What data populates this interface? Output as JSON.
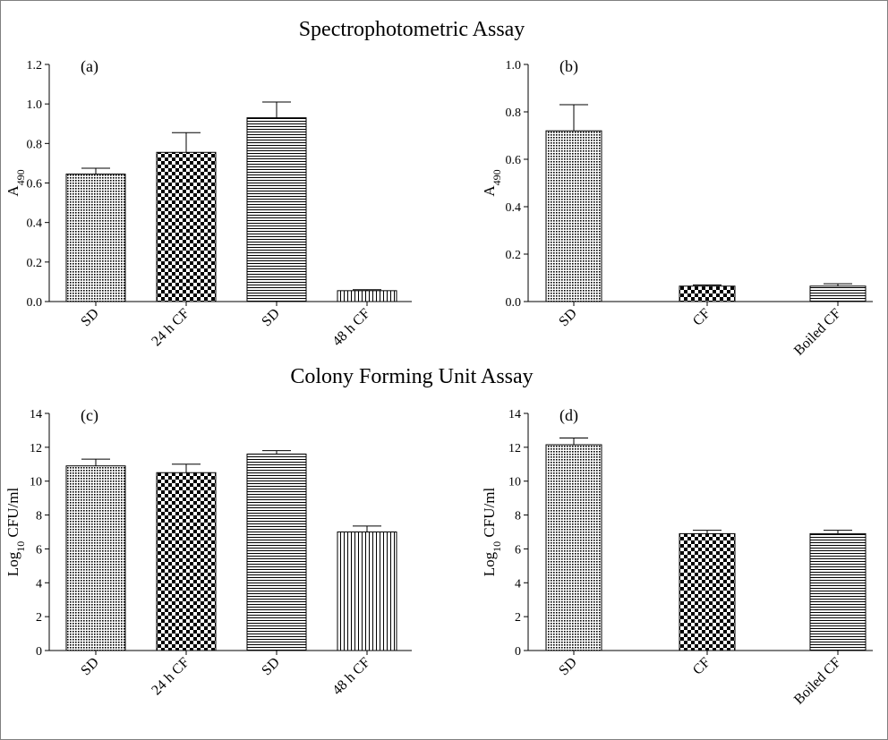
{
  "figure": {
    "section_titles": [
      "Spectrophotometric Assay",
      "Colony Forming Unit Assay"
    ],
    "colors": {
      "ink": "#000000",
      "background": "#ffffff",
      "frame": "#808080"
    }
  },
  "chart_data": [
    {
      "type": "bar",
      "panel": "(a)",
      "title": "Spectrophotometric Assay",
      "ylabel": "A",
      "ylabel_sub": "490",
      "categories": [
        "SD",
        "24 h CF",
        "SD",
        "48 h CF"
      ],
      "patterns": [
        "dots",
        "checker",
        "hlines",
        "vlines"
      ],
      "values": [
        0.645,
        0.755,
        0.93,
        0.055
      ],
      "errors": [
        0.03,
        0.1,
        0.08,
        0.005
      ],
      "ylim": [
        0,
        1.2
      ],
      "yticks": [
        0.0,
        0.2,
        0.4,
        0.6,
        0.8,
        1.0,
        1.2
      ],
      "ytick_labels": [
        "0.0",
        "0.2",
        "0.4",
        "0.6",
        "0.8",
        "1.0",
        "1.2"
      ]
    },
    {
      "type": "bar",
      "panel": "(b)",
      "title": "Spectrophotometric Assay",
      "ylabel": "A",
      "ylabel_sub": "490",
      "categories": [
        "SD",
        "CF",
        "Boiled CF"
      ],
      "patterns": [
        "dots",
        "checker",
        "hlines"
      ],
      "values": [
        0.72,
        0.065,
        0.065
      ],
      "errors": [
        0.11,
        0.005,
        0.01
      ],
      "ylim": [
        0,
        1.0
      ],
      "yticks": [
        0.0,
        0.2,
        0.4,
        0.6,
        0.8,
        1.0
      ],
      "ytick_labels": [
        "0.0",
        "0.2",
        "0.4",
        "0.6",
        "0.8",
        "1.0"
      ]
    },
    {
      "type": "bar",
      "panel": "(c)",
      "title": "Colony Forming Unit Assay",
      "ylabel": "Log",
      "ylabel_sub": "10",
      "ylabel_suffix": " CFU/ml",
      "categories": [
        "SD",
        "24 h CF",
        "SD",
        "48 h CF"
      ],
      "patterns": [
        "dots",
        "checker",
        "hlines",
        "vlines"
      ],
      "values": [
        10.9,
        10.5,
        11.6,
        7.0
      ],
      "errors": [
        0.4,
        0.5,
        0.2,
        0.35
      ],
      "ylim": [
        0,
        14
      ],
      "yticks": [
        0,
        2,
        4,
        6,
        8,
        10,
        12,
        14
      ],
      "ytick_labels": [
        "0",
        "2",
        "4",
        "6",
        "8",
        "10",
        "12",
        "14"
      ]
    },
    {
      "type": "bar",
      "panel": "(d)",
      "title": "Colony Forming Unit Assay",
      "ylabel": "Log",
      "ylabel_sub": "10",
      "ylabel_suffix": " CFU/ml",
      "categories": [
        "SD",
        "CF",
        "Boiled CF"
      ],
      "patterns": [
        "dots",
        "checker",
        "hlines"
      ],
      "values": [
        12.15,
        6.9,
        6.9
      ],
      "errors": [
        0.4,
        0.2,
        0.2
      ],
      "ylim": [
        0,
        14
      ],
      "yticks": [
        0,
        2,
        4,
        6,
        8,
        10,
        12,
        14
      ],
      "ytick_labels": [
        "0",
        "2",
        "4",
        "6",
        "8",
        "10",
        "12",
        "14"
      ]
    }
  ]
}
